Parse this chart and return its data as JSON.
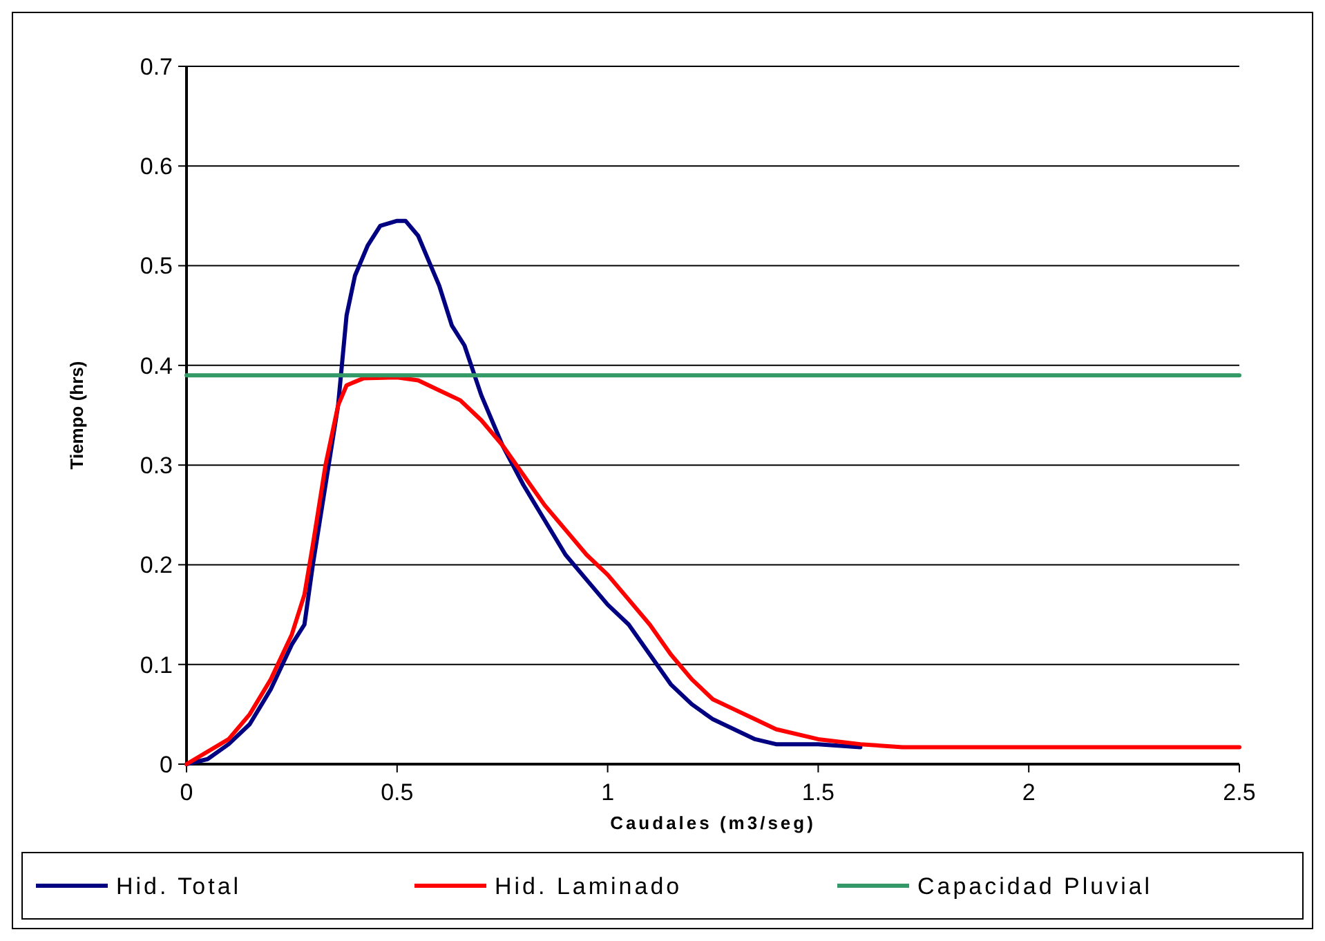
{
  "chart_data": {
    "type": "line",
    "xlabel": "Caudales (m3/seg)",
    "ylabel": "Tiempo (hrs)",
    "xlim": [
      0,
      2.5
    ],
    "xticks": [
      0,
      0.5,
      1,
      1.5,
      2,
      2.5
    ],
    "ylim": [
      0,
      0.7
    ],
    "yticks": [
      0,
      0.1,
      0.2,
      0.3,
      0.4,
      0.5,
      0.6,
      0.7
    ],
    "grid": "y",
    "legend": "bottom",
    "marker": "none",
    "series": [
      {
        "name": "Hid. Total",
        "color": "#000080",
        "x": [
          0,
          0.05,
          0.1,
          0.15,
          0.2,
          0.25,
          0.28,
          0.3,
          0.33,
          0.36,
          0.38,
          0.4,
          0.43,
          0.46,
          0.5,
          0.52,
          0.55,
          0.58,
          0.6,
          0.63,
          0.66,
          0.7,
          0.75,
          0.8,
          0.85,
          0.9,
          0.95,
          1.0,
          1.05,
          1.1,
          1.15,
          1.2,
          1.25,
          1.3,
          1.35,
          1.4,
          1.5,
          1.6
        ],
        "values": [
          0,
          0.005,
          0.02,
          0.04,
          0.075,
          0.12,
          0.14,
          0.2,
          0.28,
          0.36,
          0.45,
          0.49,
          0.52,
          0.54,
          0.545,
          0.545,
          0.53,
          0.5,
          0.48,
          0.44,
          0.42,
          0.37,
          0.32,
          0.28,
          0.245,
          0.21,
          0.185,
          0.16,
          0.14,
          0.11,
          0.08,
          0.06,
          0.045,
          0.035,
          0.025,
          0.02,
          0.02,
          0.017
        ]
      },
      {
        "name": "Hid. Laminado",
        "color": "#ff0000",
        "x": [
          0,
          0.1,
          0.15,
          0.2,
          0.25,
          0.28,
          0.3,
          0.33,
          0.36,
          0.38,
          0.42,
          0.5,
          0.55,
          0.6,
          0.65,
          0.7,
          0.75,
          0.8,
          0.85,
          0.9,
          0.95,
          1.0,
          1.05,
          1.1,
          1.15,
          1.2,
          1.25,
          1.3,
          1.35,
          1.4,
          1.5,
          1.6,
          1.7,
          2.5
        ],
        "values": [
          0,
          0.025,
          0.05,
          0.085,
          0.13,
          0.17,
          0.22,
          0.3,
          0.36,
          0.38,
          0.387,
          0.388,
          0.385,
          0.375,
          0.365,
          0.345,
          0.32,
          0.29,
          0.26,
          0.235,
          0.21,
          0.19,
          0.165,
          0.14,
          0.11,
          0.085,
          0.065,
          0.055,
          0.045,
          0.035,
          0.025,
          0.02,
          0.017,
          0.017
        ]
      },
      {
        "name": "Capacidad Pluvial",
        "color": "#339966",
        "x": [
          0,
          2.5
        ],
        "values": [
          0.39,
          0.39
        ]
      }
    ]
  }
}
